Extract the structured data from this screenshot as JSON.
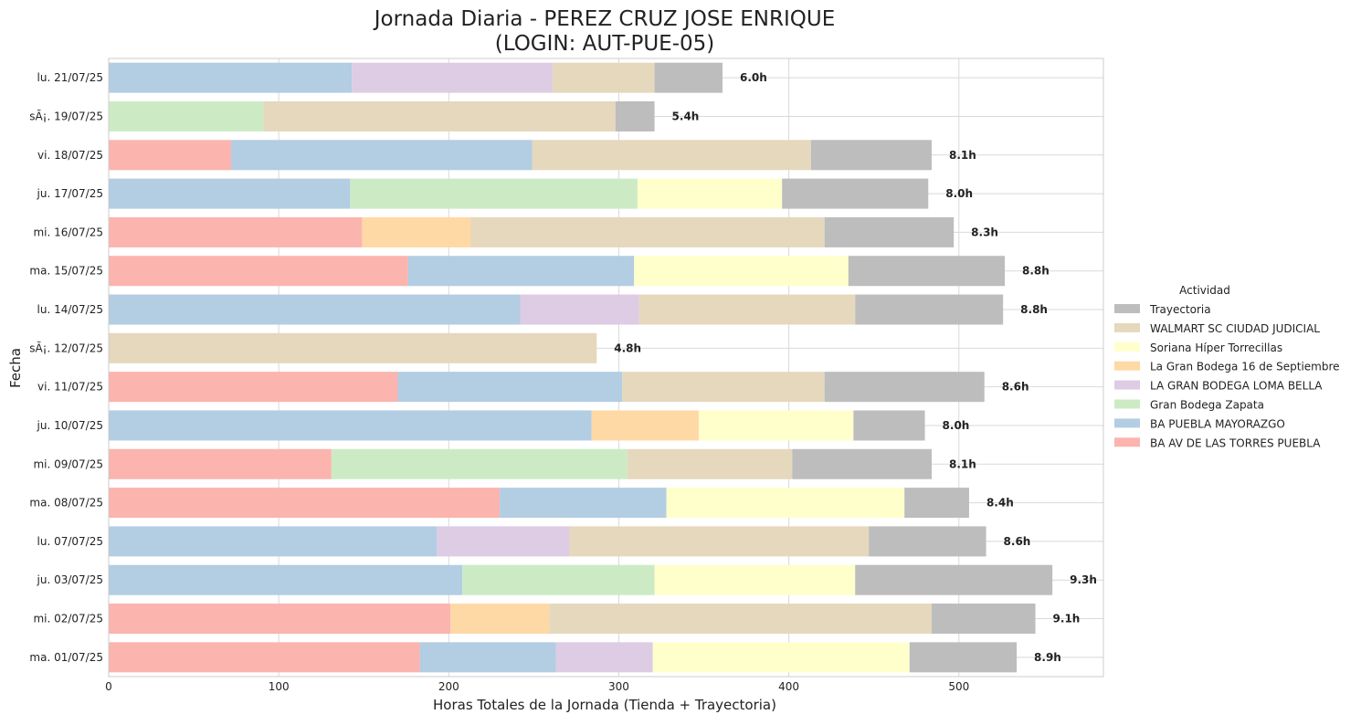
{
  "chart_data": {
    "type": "bar",
    "orientation": "horizontal",
    "stacked": true,
    "title_line1": "Jornada Diaria - PEREZ CRUZ JOSE ENRIQUE",
    "title_line2": "(LOGIN: AUT-PUE-05)",
    "xlabel": "Horas Totales de la Jornada (Tienda + Trayectoria)",
    "ylabel": "Fecha",
    "xlim": [
      0,
      585
    ],
    "xticks": [
      0,
      100,
      200,
      300,
      400,
      500
    ],
    "grid": true,
    "legend": {
      "title": "Actividad",
      "placement": "center-right"
    },
    "categories": [
      "lu. 21/07/25",
      "sÃ¡. 19/07/25",
      "vi. 18/07/25",
      "ju. 17/07/25",
      "mi. 16/07/25",
      "ma. 15/07/25",
      "lu. 14/07/25",
      "sÃ¡. 12/07/25",
      "vi. 11/07/25",
      "ju. 10/07/25",
      "mi. 09/07/25",
      "ma. 08/07/25",
      "lu. 07/07/25",
      "ju. 03/07/25",
      "mi. 02/07/25",
      "ma. 01/07/25"
    ],
    "series": [
      {
        "name": "BA AV DE LAS TORRES PUEBLA",
        "color": "#fbb4ae",
        "values": [
          0,
          0,
          72,
          0,
          149,
          176,
          0,
          0,
          170,
          0,
          131,
          230,
          0,
          0,
          201,
          183
        ]
      },
      {
        "name": "BA PUEBLA MAYORAZGO",
        "color": "#b3cde3",
        "values": [
          143,
          0,
          177,
          142,
          0,
          133,
          242,
          0,
          132,
          284,
          0,
          98,
          193,
          208,
          0,
          80
        ]
      },
      {
        "name": "Gran Bodega Zapata",
        "color": "#ccebc5",
        "values": [
          0,
          91,
          0,
          169,
          0,
          0,
          0,
          0,
          0,
          0,
          174,
          0,
          0,
          113,
          0,
          0
        ]
      },
      {
        "name": "LA GRAN BODEGA LOMA BELLA",
        "color": "#decbe4",
        "values": [
          118,
          0,
          0,
          0,
          0,
          0,
          70,
          0,
          0,
          0,
          0,
          0,
          78,
          0,
          0,
          57
        ]
      },
      {
        "name": "La Gran Bodega 16 de Septiembre",
        "color": "#fed9a6",
        "values": [
          0,
          0,
          0,
          0,
          64,
          0,
          0,
          0,
          0,
          63,
          0,
          0,
          0,
          0,
          58,
          0
        ]
      },
      {
        "name": "Soriana Híper Torrecillas",
        "color": "#ffffcc",
        "values": [
          0,
          0,
          0,
          85,
          0,
          126,
          0,
          0,
          0,
          91,
          0,
          140,
          0,
          118,
          0,
          151
        ]
      },
      {
        "name": "WALMART SC CIUDAD JUDICIAL",
        "color": "#e5d8bd",
        "values": [
          60,
          207,
          164,
          0,
          208,
          0,
          127,
          287,
          119,
          0,
          97,
          0,
          176,
          0,
          225,
          0
        ]
      },
      {
        "name": "Trayectoria",
        "color": "#bdbdbd",
        "values": [
          40,
          23,
          71,
          86,
          76,
          92,
          87,
          0,
          94,
          42,
          82,
          38,
          69,
          116,
          61,
          63
        ]
      }
    ],
    "totals_labels": [
      "6.0h",
      "5.4h",
      "8.1h",
      "8.0h",
      "8.3h",
      "8.8h",
      "8.8h",
      "4.8h",
      "8.6h",
      "8.0h",
      "8.1h",
      "8.4h",
      "8.6h",
      "9.3h",
      "9.1h",
      "8.9h"
    ],
    "legend_order": [
      "Trayectoria",
      "WALMART SC CIUDAD JUDICIAL",
      "Soriana Híper Torrecillas",
      "La Gran Bodega 16 de Septiembre",
      "LA GRAN BODEGA LOMA BELLA",
      "Gran Bodega Zapata",
      "BA PUEBLA MAYORAZGO",
      "BA AV DE LAS TORRES PUEBLA"
    ]
  }
}
